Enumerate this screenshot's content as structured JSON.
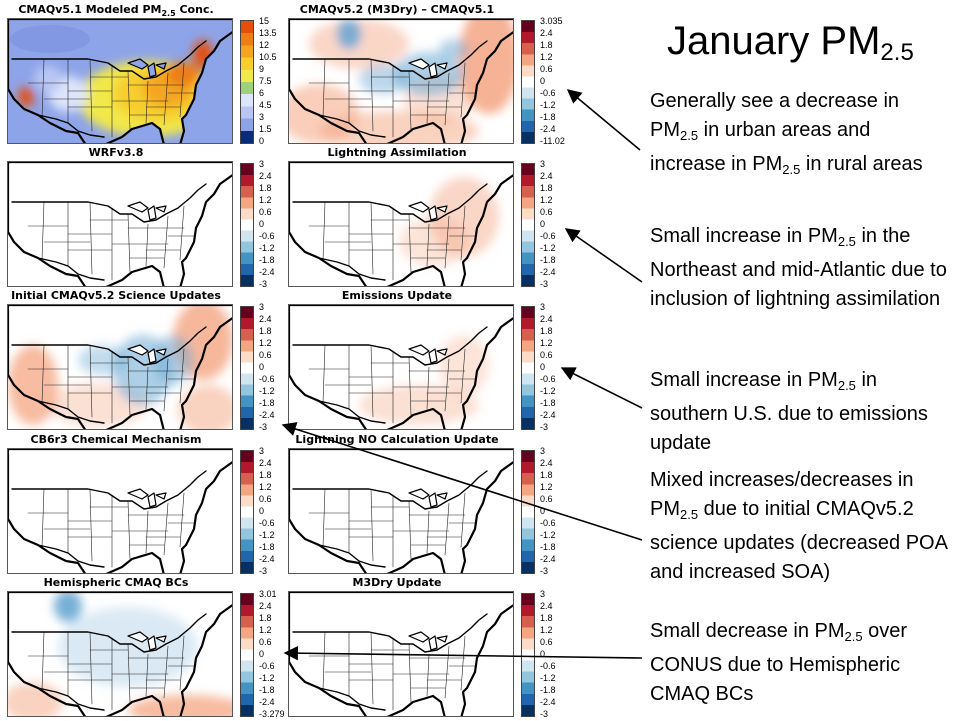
{
  "heading": {
    "text": "January PM",
    "sub": "2.5"
  },
  "panels": [
    {
      "title_pre": "CMAQv5.1 Modeled PM",
      "title_sub": "2.5",
      "title_post": " Conc.",
      "scale": "conc",
      "ticks": [
        "15",
        "13.5",
        "12",
        "10.5",
        "9",
        "7.5",
        "6",
        "4.5",
        "3",
        "1.5",
        "0"
      ]
    },
    {
      "title_pre": "CMAQv5.2 (M3Dry) – CMAQv5.1",
      "title_sub": "",
      "title_post": "",
      "scale": "diff",
      "ticks": [
        "3.035",
        "2.4",
        "1.8",
        "1.2",
        "0.6",
        "0",
        "-0.6",
        "-1.2",
        "-1.8",
        "-2.4",
        "-11.02"
      ]
    },
    {
      "title_pre": "WRFv3.8",
      "title_sub": "",
      "title_post": "",
      "scale": "diff",
      "ticks": [
        "3",
        "2.4",
        "1.8",
        "1.2",
        "0.6",
        "0",
        "-0.6",
        "-1.2",
        "-1.8",
        "-2.4",
        "-3"
      ]
    },
    {
      "title_pre": "Lightning Assimilation",
      "title_sub": "",
      "title_post": "",
      "scale": "diff",
      "ticks": [
        "3",
        "2.4",
        "1.8",
        "1.2",
        "0.6",
        "0",
        "-0.6",
        "-1.2",
        "-1.8",
        "-2.4",
        "-3"
      ]
    },
    {
      "title_pre": "Initial CMAQv5.2 Science Updates",
      "title_sub": "",
      "title_post": "",
      "scale": "diff",
      "ticks": [
        "3",
        "2.4",
        "1.8",
        "1.2",
        "0.6",
        "0",
        "-0.6",
        "-1.2",
        "-1.8",
        "-2.4",
        "-3"
      ]
    },
    {
      "title_pre": "Emissions Update",
      "title_sub": "",
      "title_post": "",
      "scale": "diff",
      "ticks": [
        "3",
        "2.4",
        "1.8",
        "1.2",
        "0.6",
        "0",
        "-0.6",
        "-1.2",
        "-1.8",
        "-2.4",
        "-3"
      ]
    },
    {
      "title_pre": "CB6r3 Chemical Mechanism",
      "title_sub": "",
      "title_post": "",
      "scale": "diff",
      "ticks": [
        "3",
        "2.4",
        "1.8",
        "1.2",
        "0.6",
        "0",
        "-0.6",
        "-1.2",
        "-1.8",
        "-2.4",
        "-3"
      ]
    },
    {
      "title_pre": "Lightning NO Calculation Update",
      "title_sub": "",
      "title_post": "",
      "scale": "diff",
      "ticks": [
        "3",
        "2.4",
        "1.8",
        "1.2",
        "0.6",
        "0",
        "-0.6",
        "-1.2",
        "-1.8",
        "-2.4",
        "-3"
      ]
    },
    {
      "title_pre": "Hemispheric CMAQ BCs",
      "title_sub": "",
      "title_post": "",
      "scale": "diff",
      "ticks": [
        "3.01",
        "2.4",
        "1.8",
        "1.2",
        "0.6",
        "0",
        "-0.6",
        "-1.2",
        "-1.8",
        "-2.4",
        "-3.279"
      ]
    },
    {
      "title_pre": "M3Dry Update",
      "title_sub": "",
      "title_post": "",
      "scale": "diff",
      "ticks": [
        "3",
        "2.4",
        "1.8",
        "1.2",
        "0.6",
        "0",
        "-0.6",
        "-1.2",
        "-1.8",
        "-2.4",
        "-3"
      ]
    }
  ],
  "notes": [
    {
      "parts": [
        {
          "t": "Generally see a decrease in PM"
        },
        {
          "s": "2.5"
        },
        {
          "t": " in urban areas and increase in PM"
        },
        {
          "s": "2.5"
        },
        {
          "t": " in rural areas"
        }
      ]
    },
    {
      "parts": [
        {
          "t": "Small increase in PM"
        },
        {
          "s": "2.5"
        },
        {
          "t": " in the Northeast and mid-Atlantic due to inclusion of lightning assimilation"
        }
      ]
    },
    {
      "parts": [
        {
          "t": "Small increase in PM"
        },
        {
          "s": "2.5"
        },
        {
          "t": " in southern U.S. due to emissions update"
        }
      ]
    },
    {
      "parts": [
        {
          "t": "Mixed increases/decreases in PM"
        },
        {
          "s": "2.5"
        },
        {
          "t": " due to initial CMAQv5.2 science updates (decreased POA and increased SOA)"
        }
      ]
    },
    {
      "parts": [
        {
          "t": "Small decrease in PM"
        },
        {
          "s": "2.5"
        },
        {
          "t": " over CONUS due to Hemispheric CMAQ BCs"
        }
      ]
    }
  ],
  "colors": {
    "conc_scale": [
      "#0a2a7a",
      "#8ea4e8",
      "#b9c6f3",
      "#dde5fb",
      "#9fd07a",
      "#f1e84a",
      "#f7ce2e",
      "#f4a520",
      "#ee7d14",
      "#e4500c"
    ],
    "diff_scale": [
      "#053061",
      "#2166ac",
      "#4393c3",
      "#92c5de",
      "#d1e5f0",
      "#ffffff",
      "#fddbc7",
      "#f4a582",
      "#d6604d",
      "#b2182b",
      "#67001f"
    ],
    "pos_tint": "#f4a582",
    "neg_tint": "#6aa7d3"
  },
  "map_effects": [
    {
      "kind": "conc"
    },
    {
      "kind": "diff",
      "blobs": [
        {
          "sign": "+",
          "cx": 200,
          "cy": 40,
          "rx": 30,
          "ry": 55,
          "op": 0.85
        },
        {
          "sign": "+",
          "cx": 30,
          "cy": 95,
          "rx": 40,
          "ry": 30,
          "op": 0.55
        },
        {
          "sign": "+",
          "cx": 110,
          "cy": 112,
          "rx": 80,
          "ry": 20,
          "op": 0.5
        },
        {
          "sign": "+",
          "cx": 70,
          "cy": 25,
          "rx": 50,
          "ry": 25,
          "op": 0.45
        },
        {
          "sign": "+",
          "cx": 150,
          "cy": 80,
          "rx": 35,
          "ry": 25,
          "op": 0.35
        },
        {
          "sign": "-",
          "cx": 60,
          "cy": 15,
          "rx": 12,
          "ry": 15,
          "op": 0.9
        },
        {
          "sign": "-",
          "cx": 140,
          "cy": 55,
          "rx": 35,
          "ry": 22,
          "op": 0.55
        },
        {
          "sign": "-",
          "cx": 95,
          "cy": 60,
          "rx": 25,
          "ry": 15,
          "op": 0.45
        },
        {
          "sign": "-",
          "cx": 165,
          "cy": 30,
          "rx": 15,
          "ry": 10,
          "op": 0.5
        }
      ]
    },
    {
      "kind": "diff",
      "blobs": []
    },
    {
      "kind": "diff",
      "blobs": [
        {
          "sign": "+",
          "cx": 175,
          "cy": 55,
          "rx": 35,
          "ry": 40,
          "op": 0.45
        },
        {
          "sign": "+",
          "cx": 145,
          "cy": 80,
          "rx": 35,
          "ry": 25,
          "op": 0.3
        }
      ]
    },
    {
      "kind": "diff",
      "blobs": [
        {
          "sign": "+",
          "cx": 195,
          "cy": 35,
          "rx": 30,
          "ry": 40,
          "op": 0.8
        },
        {
          "sign": "+",
          "cx": 25,
          "cy": 80,
          "rx": 25,
          "ry": 40,
          "op": 0.75
        },
        {
          "sign": "+",
          "cx": 200,
          "cy": 105,
          "rx": 30,
          "ry": 25,
          "op": 0.5
        },
        {
          "sign": "+",
          "cx": 90,
          "cy": 100,
          "rx": 50,
          "ry": 22,
          "op": 0.35
        },
        {
          "sign": "-",
          "cx": 135,
          "cy": 65,
          "rx": 30,
          "ry": 35,
          "op": 0.55
        },
        {
          "sign": "-",
          "cx": 165,
          "cy": 55,
          "rx": 20,
          "ry": 25,
          "op": 0.5
        },
        {
          "sign": "-",
          "cx": 95,
          "cy": 55,
          "rx": 25,
          "ry": 15,
          "op": 0.4
        }
      ]
    },
    {
      "kind": "diff",
      "blobs": [
        {
          "sign": "+",
          "cx": 130,
          "cy": 100,
          "rx": 60,
          "ry": 20,
          "op": 0.35
        },
        {
          "sign": "+",
          "cx": 175,
          "cy": 60,
          "rx": 25,
          "ry": 30,
          "op": 0.3
        }
      ]
    },
    {
      "kind": "diff",
      "blobs": []
    },
    {
      "kind": "diff",
      "blobs": []
    },
    {
      "kind": "diff",
      "blobs": [
        {
          "sign": "+",
          "cx": 180,
          "cy": 118,
          "rx": 60,
          "ry": 15,
          "op": 0.75
        },
        {
          "sign": "+",
          "cx": 25,
          "cy": 110,
          "rx": 30,
          "ry": 20,
          "op": 0.5
        },
        {
          "sign": "-",
          "cx": 60,
          "cy": 14,
          "rx": 14,
          "ry": 16,
          "op": 0.9
        },
        {
          "sign": "-",
          "cx": 120,
          "cy": 55,
          "rx": 70,
          "ry": 40,
          "op": 0.25
        }
      ]
    },
    {
      "kind": "diff",
      "blobs": []
    }
  ]
}
